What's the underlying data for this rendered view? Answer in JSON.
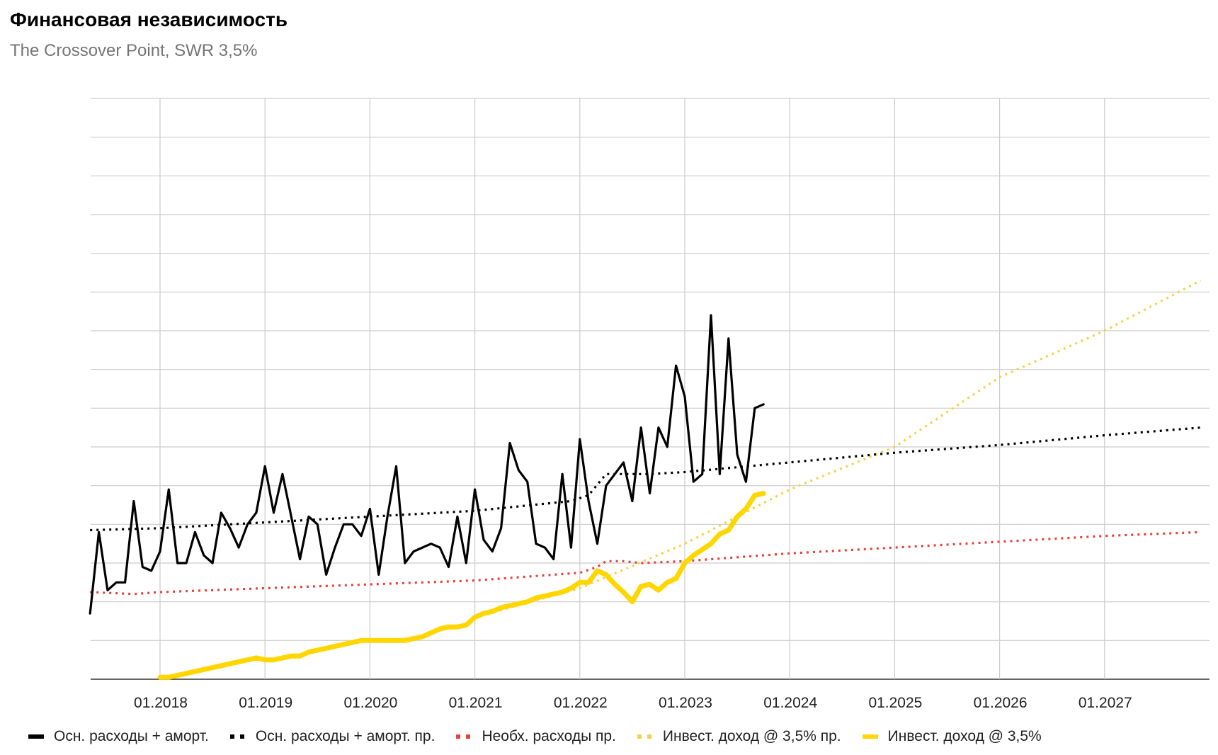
{
  "header": {
    "title": "Финансовая независимость",
    "subtitle": "The Crossover Point, SWR 3,5%"
  },
  "chart_data": {
    "type": "line",
    "title": "Финансовая независимость",
    "subtitle": "The Crossover Point, SWR 3,5%",
    "x_tick_labels": [
      "01.2018",
      "01.2019",
      "01.2020",
      "01.2021",
      "01.2022",
      "01.2023",
      "01.2024",
      "01.2025",
      "01.2026",
      "01.2027"
    ],
    "x_range": [
      "2017-05",
      "2027-12"
    ],
    "y_range": [
      0,
      15
    ],
    "y_tick_labels_visible": false,
    "grid": true,
    "legend_position": "bottom",
    "series": [
      {
        "name": "Осн. расходы + аморт.",
        "style": "solid",
        "color": "#000000",
        "points": [
          [
            "2017-05",
            1.7
          ],
          [
            "2017-06",
            3.8
          ],
          [
            "2017-07",
            2.3
          ],
          [
            "2017-08",
            2.5
          ],
          [
            "2017-09",
            2.5
          ],
          [
            "2017-10",
            4.6
          ],
          [
            "2017-11",
            2.9
          ],
          [
            "2017-12",
            2.8
          ],
          [
            "2018-01",
            3.3
          ],
          [
            "2018-02",
            4.9
          ],
          [
            "2018-03",
            3.0
          ],
          [
            "2018-04",
            3.0
          ],
          [
            "2018-05",
            3.8
          ],
          [
            "2018-06",
            3.2
          ],
          [
            "2018-07",
            3.0
          ],
          [
            "2018-08",
            4.3
          ],
          [
            "2018-09",
            3.9
          ],
          [
            "2018-10",
            3.4
          ],
          [
            "2018-11",
            4.0
          ],
          [
            "2018-12",
            4.3
          ],
          [
            "2019-01",
            5.5
          ],
          [
            "2019-02",
            4.3
          ],
          [
            "2019-03",
            5.3
          ],
          [
            "2019-04",
            4.2
          ],
          [
            "2019-05",
            3.1
          ],
          [
            "2019-06",
            4.2
          ],
          [
            "2019-07",
            4.0
          ],
          [
            "2019-08",
            2.7
          ],
          [
            "2019-09",
            3.4
          ],
          [
            "2019-10",
            4.0
          ],
          [
            "2019-11",
            4.0
          ],
          [
            "2019-12",
            3.7
          ],
          [
            "2020-01",
            4.4
          ],
          [
            "2020-02",
            2.7
          ],
          [
            "2020-03",
            4.2
          ],
          [
            "2020-04",
            5.5
          ],
          [
            "2020-05",
            3.0
          ],
          [
            "2020-06",
            3.3
          ],
          [
            "2020-07",
            3.4
          ],
          [
            "2020-08",
            3.5
          ],
          [
            "2020-09",
            3.4
          ],
          [
            "2020-10",
            2.9
          ],
          [
            "2020-11",
            4.2
          ],
          [
            "2020-12",
            3.0
          ],
          [
            "2021-01",
            4.9
          ],
          [
            "2021-02",
            3.6
          ],
          [
            "2021-03",
            3.3
          ],
          [
            "2021-04",
            3.9
          ],
          [
            "2021-05",
            6.1
          ],
          [
            "2021-06",
            5.4
          ],
          [
            "2021-07",
            5.1
          ],
          [
            "2021-08",
            3.5
          ],
          [
            "2021-09",
            3.4
          ],
          [
            "2021-10",
            3.1
          ],
          [
            "2021-11",
            5.3
          ],
          [
            "2021-12",
            3.4
          ],
          [
            "2022-01",
            6.2
          ],
          [
            "2022-02",
            4.6
          ],
          [
            "2022-03",
            3.5
          ],
          [
            "2022-04",
            5.0
          ],
          [
            "2022-05",
            5.3
          ],
          [
            "2022-06",
            5.6
          ],
          [
            "2022-07",
            4.6
          ],
          [
            "2022-08",
            6.5
          ],
          [
            "2022-09",
            4.8
          ],
          [
            "2022-10",
            6.5
          ],
          [
            "2022-11",
            6.0
          ],
          [
            "2022-12",
            8.1
          ],
          [
            "2023-01",
            7.3
          ],
          [
            "2023-02",
            5.1
          ],
          [
            "2023-03",
            5.3
          ],
          [
            "2023-04",
            9.4
          ],
          [
            "2023-05",
            5.3
          ],
          [
            "2023-06",
            8.8
          ],
          [
            "2023-07",
            5.8
          ],
          [
            "2023-08",
            5.1
          ],
          [
            "2023-09",
            7.0
          ],
          [
            "2023-10",
            7.1
          ]
        ]
      },
      {
        "name": "Осн. расходы + аморт. пр.",
        "style": "dotted",
        "color": "#000000",
        "points": [
          [
            "2017-05",
            3.85
          ],
          [
            "2018-01",
            3.9
          ],
          [
            "2019-01",
            4.05
          ],
          [
            "2020-01",
            4.2
          ],
          [
            "2021-01",
            4.35
          ],
          [
            "2021-12",
            4.6
          ],
          [
            "2022-02",
            4.75
          ],
          [
            "2022-04",
            5.3
          ],
          [
            "2022-06",
            5.3
          ],
          [
            "2022-09",
            5.3
          ],
          [
            "2023-01",
            5.35
          ],
          [
            "2024-01",
            5.6
          ],
          [
            "2025-01",
            5.85
          ],
          [
            "2026-01",
            6.05
          ],
          [
            "2027-01",
            6.3
          ],
          [
            "2027-12",
            6.5
          ]
        ]
      },
      {
        "name": "Необх. расходы пр.",
        "style": "dotted",
        "color": "#e8423c",
        "points": [
          [
            "2017-05",
            2.25
          ],
          [
            "2017-10",
            2.2
          ],
          [
            "2018-01",
            2.25
          ],
          [
            "2019-01",
            2.35
          ],
          [
            "2020-01",
            2.45
          ],
          [
            "2021-01",
            2.55
          ],
          [
            "2022-01",
            2.75
          ],
          [
            "2022-03",
            2.9
          ],
          [
            "2022-04",
            3.05
          ],
          [
            "2022-06",
            3.05
          ],
          [
            "2022-08",
            3.0
          ],
          [
            "2023-01",
            3.05
          ],
          [
            "2024-01",
            3.25
          ],
          [
            "2025-01",
            3.4
          ],
          [
            "2026-01",
            3.55
          ],
          [
            "2027-01",
            3.7
          ],
          [
            "2027-12",
            3.8
          ]
        ]
      },
      {
        "name": "Инвест. доход @ 3,5% пр.",
        "style": "dotted",
        "color": "#f7d14c",
        "points": [
          [
            "2021-01",
            1.6
          ],
          [
            "2022-01",
            2.35
          ],
          [
            "2023-01",
            3.5
          ],
          [
            "2024-01",
            4.9
          ],
          [
            "2025-01",
            6.0
          ],
          [
            "2026-01",
            7.8
          ],
          [
            "2027-01",
            9.0
          ],
          [
            "2027-12",
            10.3
          ]
        ]
      },
      {
        "name": "Инвест. доход @ 3,5%",
        "style": "solid",
        "color": "#ffd600",
        "points": [
          [
            "2018-01",
            0.05
          ],
          [
            "2018-02",
            0.05
          ],
          [
            "2018-03",
            0.1
          ],
          [
            "2018-04",
            0.15
          ],
          [
            "2018-05",
            0.2
          ],
          [
            "2018-06",
            0.25
          ],
          [
            "2018-07",
            0.3
          ],
          [
            "2018-08",
            0.35
          ],
          [
            "2018-09",
            0.4
          ],
          [
            "2018-10",
            0.45
          ],
          [
            "2018-11",
            0.5
          ],
          [
            "2018-12",
            0.55
          ],
          [
            "2019-01",
            0.5
          ],
          [
            "2019-02",
            0.5
          ],
          [
            "2019-03",
            0.55
          ],
          [
            "2019-04",
            0.6
          ],
          [
            "2019-05",
            0.6
          ],
          [
            "2019-06",
            0.7
          ],
          [
            "2019-07",
            0.75
          ],
          [
            "2019-08",
            0.8
          ],
          [
            "2019-09",
            0.85
          ],
          [
            "2019-10",
            0.9
          ],
          [
            "2019-11",
            0.95
          ],
          [
            "2019-12",
            1.0
          ],
          [
            "2020-01",
            1.0
          ],
          [
            "2020-02",
            1.0
          ],
          [
            "2020-03",
            1.0
          ],
          [
            "2020-04",
            1.0
          ],
          [
            "2020-05",
            1.0
          ],
          [
            "2020-06",
            1.05
          ],
          [
            "2020-07",
            1.1
          ],
          [
            "2020-08",
            1.2
          ],
          [
            "2020-09",
            1.3
          ],
          [
            "2020-10",
            1.35
          ],
          [
            "2020-11",
            1.35
          ],
          [
            "2020-12",
            1.4
          ],
          [
            "2021-01",
            1.6
          ],
          [
            "2021-02",
            1.7
          ],
          [
            "2021-03",
            1.75
          ],
          [
            "2021-04",
            1.85
          ],
          [
            "2021-05",
            1.9
          ],
          [
            "2021-06",
            1.95
          ],
          [
            "2021-07",
            2.0
          ],
          [
            "2021-08",
            2.1
          ],
          [
            "2021-09",
            2.15
          ],
          [
            "2021-10",
            2.2
          ],
          [
            "2021-11",
            2.25
          ],
          [
            "2021-12",
            2.35
          ],
          [
            "2022-01",
            2.5
          ],
          [
            "2022-02",
            2.5
          ],
          [
            "2022-03",
            2.8
          ],
          [
            "2022-04",
            2.7
          ],
          [
            "2022-05",
            2.45
          ],
          [
            "2022-06",
            2.25
          ],
          [
            "2022-07",
            2.0
          ],
          [
            "2022-08",
            2.4
          ],
          [
            "2022-09",
            2.45
          ],
          [
            "2022-10",
            2.3
          ],
          [
            "2022-11",
            2.5
          ],
          [
            "2022-12",
            2.6
          ],
          [
            "2023-01",
            3.0
          ],
          [
            "2023-02",
            3.2
          ],
          [
            "2023-03",
            3.35
          ],
          [
            "2023-04",
            3.5
          ],
          [
            "2023-05",
            3.75
          ],
          [
            "2023-06",
            3.85
          ],
          [
            "2023-07",
            4.2
          ],
          [
            "2023-08",
            4.4
          ],
          [
            "2023-09",
            4.75
          ],
          [
            "2023-10",
            4.8
          ]
        ]
      }
    ]
  }
}
